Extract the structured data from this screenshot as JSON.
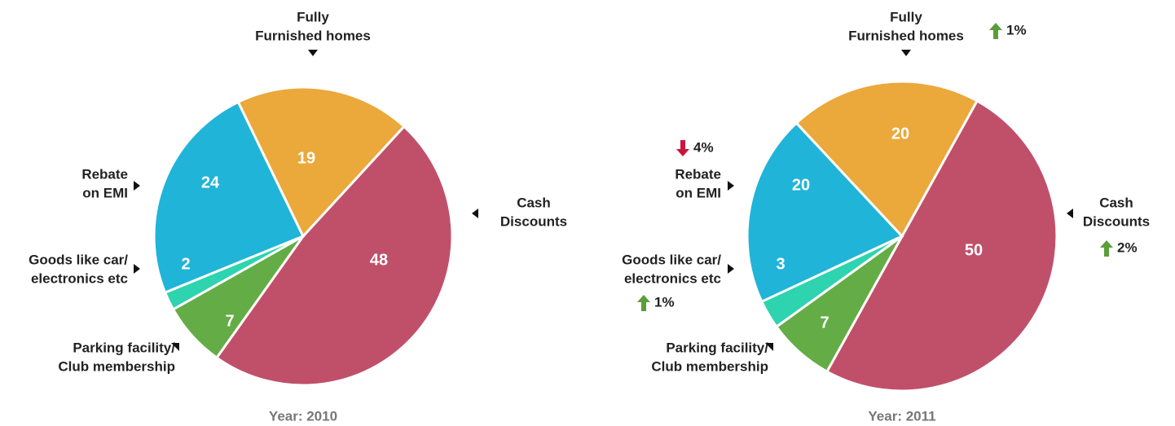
{
  "chart_data": [
    {
      "type": "pie",
      "title": "Year: 2010",
      "categories": [
        [
          "Cash",
          "Discounts"
        ],
        [
          "Parking facility/",
          "Club membership"
        ],
        [
          "Goods like car/",
          "electronics etc"
        ],
        [
          "Rebate",
          "on EMI"
        ],
        [
          "Fully",
          "Furnished homes"
        ]
      ],
      "values": [
        48,
        7,
        2,
        24,
        19
      ],
      "colors": [
        "#c0506a",
        "#64ad46",
        "#2ed3b0",
        "#20b4d8",
        "#eba83b"
      ]
    },
    {
      "type": "pie",
      "title": "Year: 2011",
      "categories": [
        [
          "Cash",
          "Discounts"
        ],
        [
          "Parking facility/",
          "Club membership"
        ],
        [
          "Goods like car/",
          "electronics etc"
        ],
        [
          "Rebate",
          "on EMI"
        ],
        [
          "Fully",
          "Furnished homes"
        ]
      ],
      "values": [
        50,
        7,
        3,
        20,
        20
      ],
      "colors": [
        "#c0506a",
        "#64ad46",
        "#2ed3b0",
        "#20b4d8",
        "#eba83b"
      ],
      "changes": [
        2,
        null,
        1,
        -4,
        1
      ],
      "change_labels": [
        "2%",
        null,
        "1%",
        "4%",
        "1%"
      ]
    }
  ]
}
